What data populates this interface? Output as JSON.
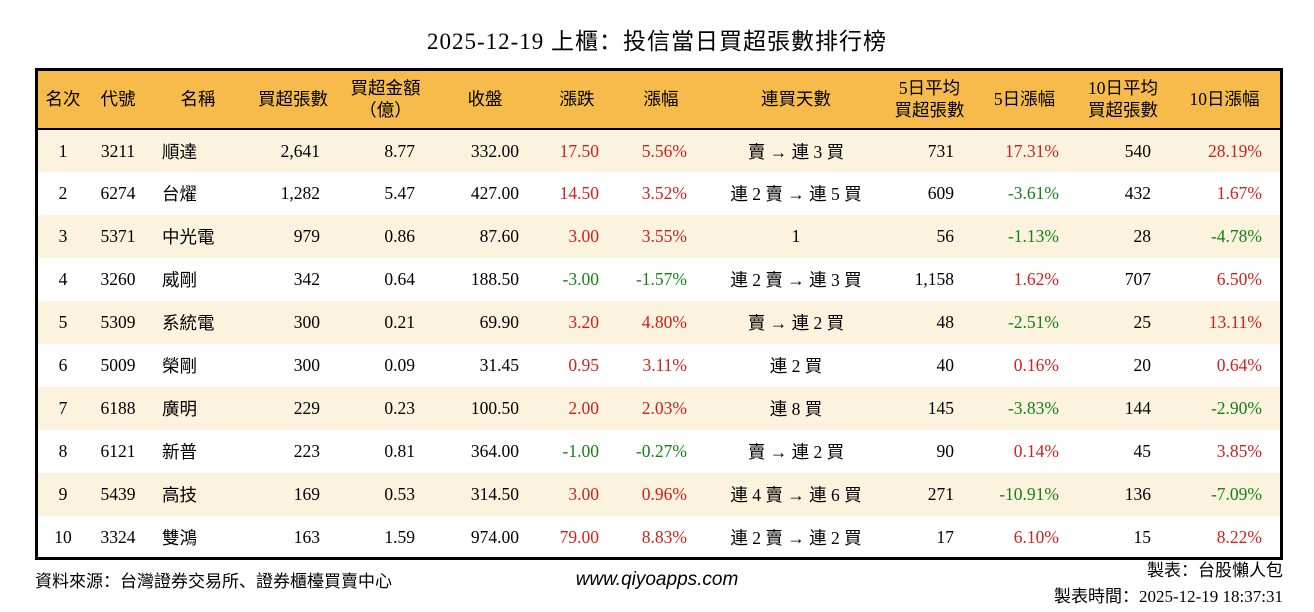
{
  "title": "2025-12-19 上櫃：投信當日買超張數排行榜",
  "colors": {
    "up_red": "#d02020",
    "down_green": "#148214",
    "header_bg": "#f6bb4b",
    "stripe_bg": "#fbf3dd",
    "border": "#000000"
  },
  "chart_data": {
    "type": "table",
    "title": "2025-12-19 上櫃：投信當日買超張數排行榜",
    "columns": [
      "名次",
      "代號",
      "名稱",
      "買超張數",
      "買超金額\n（億）",
      "收盤",
      "漲跌",
      "漲幅",
      "連買天數",
      "5日平均\n買超張數",
      "5日漲幅",
      "10日平均\n買超張數",
      "10日漲幅"
    ],
    "rows": [
      [
        "1",
        "3211",
        "順達",
        "2,641",
        "8.77",
        "332.00",
        "17.50",
        "5.56%",
        "賣 → 連 3 買",
        "731",
        "17.31%",
        "540",
        "28.19%"
      ],
      [
        "2",
        "6274",
        "台燿",
        "1,282",
        "5.47",
        "427.00",
        "14.50",
        "3.52%",
        "連 2 賣 → 連 5 買",
        "609",
        "-3.61%",
        "432",
        "1.67%"
      ],
      [
        "3",
        "5371",
        "中光電",
        "979",
        "0.86",
        "87.60",
        "3.00",
        "3.55%",
        "1",
        "56",
        "-1.13%",
        "28",
        "-4.78%"
      ],
      [
        "4",
        "3260",
        "威剛",
        "342",
        "0.64",
        "188.50",
        "-3.00",
        "-1.57%",
        "連 2 賣 → 連 3 買",
        "1,158",
        "1.62%",
        "707",
        "6.50%"
      ],
      [
        "5",
        "5309",
        "系統電",
        "300",
        "0.21",
        "69.90",
        "3.20",
        "4.80%",
        "賣 → 連 2 買",
        "48",
        "-2.51%",
        "25",
        "13.11%"
      ],
      [
        "6",
        "5009",
        "榮剛",
        "300",
        "0.09",
        "31.45",
        "0.95",
        "3.11%",
        "連 2 買",
        "40",
        "0.16%",
        "20",
        "0.64%"
      ],
      [
        "7",
        "6188",
        "廣明",
        "229",
        "0.23",
        "100.50",
        "2.00",
        "2.03%",
        "連 8 買",
        "145",
        "-3.83%",
        "144",
        "-2.90%"
      ],
      [
        "8",
        "6121",
        "新普",
        "223",
        "0.81",
        "364.00",
        "-1.00",
        "-0.27%",
        "賣 → 連 2 買",
        "90",
        "0.14%",
        "45",
        "3.85%"
      ],
      [
        "9",
        "5439",
        "高技",
        "169",
        "0.53",
        "314.50",
        "3.00",
        "0.96%",
        "連 4 賣 → 連 6 買",
        "271",
        "-10.91%",
        "136",
        "-7.09%"
      ],
      [
        "10",
        "3324",
        "雙鴻",
        "163",
        "1.59",
        "974.00",
        "79.00",
        "8.83%",
        "連 2 賣 → 連 2 買",
        "17",
        "6.10%",
        "15",
        "8.22%"
      ]
    ]
  },
  "footer": {
    "source": "資料來源：台灣證券交易所、證券櫃檯買賣中心",
    "website": "www.qiyoapps.com",
    "maker": "製表：台股懶人包",
    "made_time": "製表時間：2025-12-19 18:37:31"
  }
}
